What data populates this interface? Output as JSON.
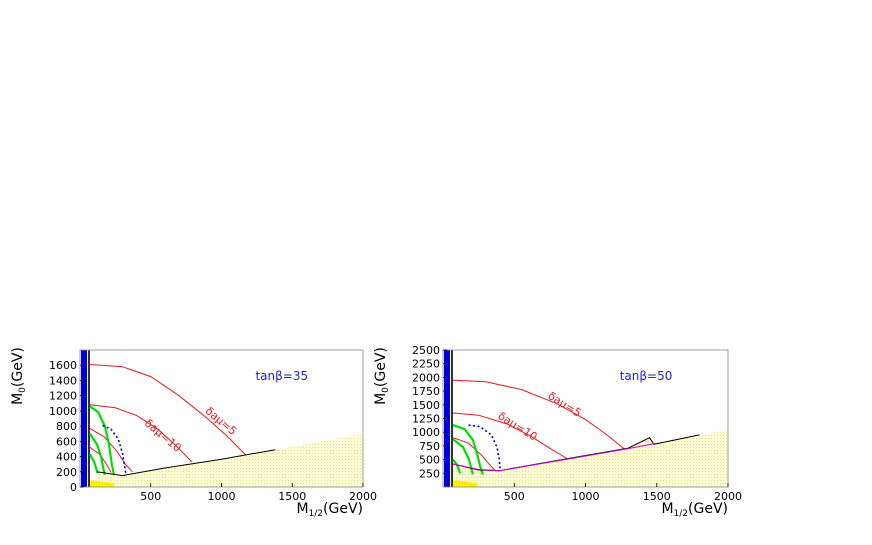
{
  "chart_data": [
    {
      "type": "line",
      "title": "",
      "annotation": "tanβ=35",
      "xlabel": "M1/2(GeV)",
      "ylabel": "M0(GeV)",
      "xlim": [
        0,
        2000
      ],
      "ylim": [
        0,
        1800
      ],
      "xticks": [
        500,
        1000,
        1500,
        2000
      ],
      "yticks": [
        0,
        200,
        400,
        600,
        800,
        1000,
        1200,
        1400,
        1600
      ],
      "grid": false,
      "contour_labels": [
        {
          "text": "δaμ=5",
          "x": 980,
          "y": 830
        },
        {
          "text": "δaμ=10",
          "x": 570,
          "y": 640
        }
      ],
      "series": [
        {
          "color": "#e41a1c",
          "points": [
            [
              70,
              1610
            ],
            [
              300,
              1580
            ],
            [
              500,
              1450
            ],
            [
              700,
              1200
            ],
            [
              900,
              900
            ],
            [
              1050,
              650
            ],
            [
              1170,
              420
            ]
          ]
        },
        {
          "color": "#e41a1c",
          "points": [
            [
              70,
              1080
            ],
            [
              250,
              1040
            ],
            [
              400,
              940
            ],
            [
              550,
              760
            ],
            [
              680,
              540
            ],
            [
              790,
              330
            ]
          ]
        },
        {
          "color": "#e41a1c",
          "points": [
            [
              70,
              770
            ],
            [
              170,
              660
            ],
            [
              260,
              470
            ],
            [
              320,
              300
            ],
            [
              370,
              200
            ]
          ]
        },
        {
          "color": "#e41a1c",
          "points": [
            [
              70,
              520
            ],
            [
              140,
              430
            ],
            [
              190,
              290
            ],
            [
              220,
              190
            ]
          ]
        },
        {
          "color": "#00dd00",
          "points": [
            [
              70,
              1060
            ],
            [
              130,
              980
            ],
            [
              175,
              800
            ],
            [
              205,
              560
            ],
            [
              225,
              300
            ],
            [
              240,
              160
            ]
          ]
        },
        {
          "color": "#00dd00",
          "points": [
            [
              70,
              700
            ],
            [
              120,
              560
            ],
            [
              150,
              390
            ],
            [
              165,
              240
            ],
            [
              175,
              160
            ]
          ]
        },
        {
          "color": "#00dd00",
          "points": [
            [
              70,
              430
            ],
            [
              100,
              330
            ],
            [
              125,
              180
            ]
          ]
        },
        {
          "color": "#0000cc",
          "dashed": true,
          "points": [
            [
              160,
              810
            ],
            [
              220,
              760
            ],
            [
              270,
              630
            ],
            [
              300,
              450
            ],
            [
              315,
              280
            ],
            [
              325,
              160
            ]
          ]
        },
        {
          "color": "#000000",
          "points": [
            [
              120,
              200
            ],
            [
              300,
              150
            ],
            [
              600,
              250
            ],
            [
              1000,
              365
            ],
            [
              1380,
              490
            ]
          ]
        }
      ],
      "excluded_region": "no EWSB / charged LSP"
    },
    {
      "type": "line",
      "title": "",
      "annotation": "tanβ=50",
      "xlabel": "M1/2(GeV)",
      "ylabel": "M0(GeV)",
      "xlim": [
        0,
        2000
      ],
      "ylim": [
        0,
        2500
      ],
      "xticks": [
        500,
        1000,
        1500,
        2000
      ],
      "yticks": [
        250,
        500,
        750,
        1000,
        1250,
        1500,
        1750,
        2000,
        2250,
        2500
      ],
      "grid": false,
      "contour_labels": [
        {
          "text": "δaμ=5",
          "x": 840,
          "y": 1450
        },
        {
          "text": "δaμ=10",
          "x": 510,
          "y": 1050
        }
      ],
      "series": [
        {
          "color": "#e41a1c",
          "points": [
            [
              70,
              1950
            ],
            [
              300,
              1920
            ],
            [
              550,
              1780
            ],
            [
              800,
              1520
            ],
            [
              1000,
              1230
            ],
            [
              1150,
              950
            ],
            [
              1270,
              700
            ]
          ]
        },
        {
          "color": "#e41a1c",
          "points": [
            [
              70,
              1350
            ],
            [
              250,
              1310
            ],
            [
              450,
              1150
            ],
            [
              620,
              920
            ],
            [
              760,
              690
            ],
            [
              870,
              520
            ]
          ]
        },
        {
          "color": "#e41a1c",
          "points": [
            [
              70,
              900
            ],
            [
              180,
              800
            ],
            [
              270,
              580
            ],
            [
              330,
              400
            ],
            [
              370,
              290
            ]
          ]
        },
        {
          "color": "#00dd00",
          "points": [
            [
              70,
              1130
            ],
            [
              150,
              1060
            ],
            [
              210,
              860
            ],
            [
              240,
              600
            ],
            [
              260,
              380
            ],
            [
              280,
              230
            ]
          ]
        },
        {
          "color": "#00dd00",
          "points": [
            [
              70,
              870
            ],
            [
              140,
              730
            ],
            [
              180,
              520
            ],
            [
              200,
              330
            ],
            [
              210,
              230
            ]
          ]
        },
        {
          "color": "#00dd00",
          "points": [
            [
              70,
              500
            ],
            [
              100,
              400
            ],
            [
              120,
              250
            ]
          ]
        },
        {
          "color": "#0000cc",
          "dashed": true,
          "points": [
            [
              180,
              1130
            ],
            [
              260,
              1100
            ],
            [
              340,
              950
            ],
            [
              380,
              720
            ],
            [
              395,
              500
            ],
            [
              400,
              330
            ]
          ]
        },
        {
          "color": "#000000",
          "points": [
            [
              70,
              420
            ],
            [
              250,
              310
            ],
            [
              400,
              300
            ],
            [
              900,
              530
            ],
            [
              1300,
              710
            ],
            [
              1450,
              900
            ],
            [
              1480,
              780
            ],
            [
              1800,
              950
            ]
          ]
        },
        {
          "color": "#cc00cc",
          "points": [
            [
              70,
              420
            ],
            [
              250,
              320
            ],
            [
              400,
              300
            ],
            [
              900,
              520
            ],
            [
              1300,
              700
            ],
            [
              1500,
              800
            ]
          ]
        }
      ],
      "excluded_region": "no EWSB / charged LSP"
    }
  ]
}
